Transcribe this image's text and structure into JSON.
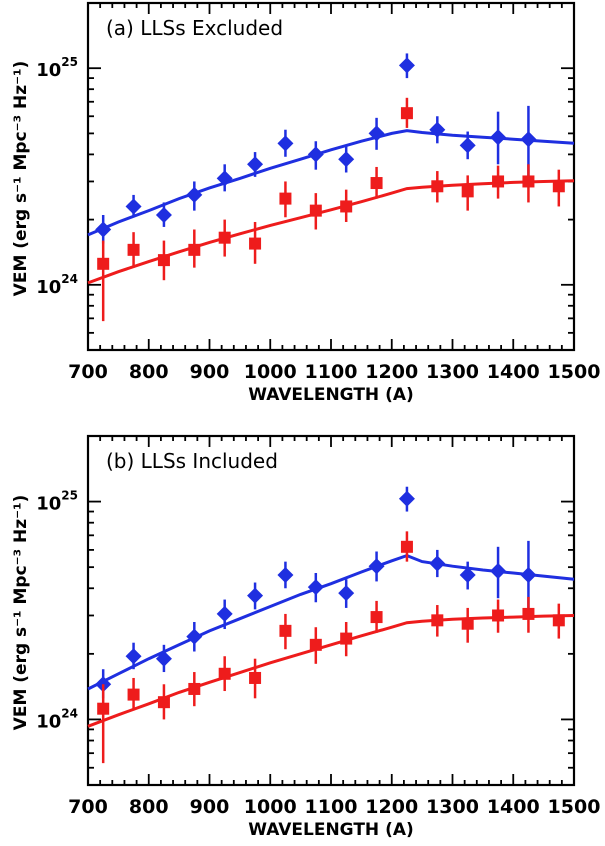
{
  "chart_data": [
    {
      "type": "scatter",
      "id": "a",
      "title": "(a) LLSs Excluded",
      "xlabel": "WAVELENGTH (A)",
      "ylabel": "VEM (erg s⁻¹ Mpc⁻³ Hz⁻¹)",
      "xlim": [
        700,
        1500
      ],
      "ylim": [
        5e+23,
        2e+25
      ],
      "yscale": "log",
      "xticks": [
        "700",
        "800",
        "900",
        "1000",
        "1100",
        "1200",
        "1300",
        "1400",
        "1500"
      ],
      "yticks": [
        {
          "base": "10",
          "exp": "24",
          "value": 1e+24
        },
        {
          "base": "10",
          "exp": "25",
          "value": 1e+25
        }
      ],
      "series": [
        {
          "name": "blue-diamonds",
          "color": "#1f2fe0",
          "marker": "diamond",
          "x": [
            725,
            775,
            825,
            875,
            925,
            975,
            1025,
            1075,
            1125,
            1175,
            1225,
            1275,
            1325,
            1375,
            1425
          ],
          "y": [
            1.8e+24,
            2.3e+24,
            2.1e+24,
            2.6e+24,
            3.1e+24,
            3.6e+24,
            4.5e+24,
            4e+24,
            3.8e+24,
            5e+24,
            1.03e+25,
            5.2e+24,
            4.4e+24,
            4.8e+24,
            4.7e+24
          ],
          "ylo": [
            1.55e+24,
            2.05e+24,
            1.85e+24,
            2.2e+24,
            2.7e+24,
            3.15e+24,
            3.9e+24,
            3.4e+24,
            3.3e+24,
            4.2e+24,
            9e+24,
            4.5e+24,
            3.8e+24,
            3.6e+24,
            3.1e+24
          ],
          "yhi": [
            2.1e+24,
            2.6e+24,
            2.4e+24,
            3e+24,
            3.6e+24,
            4.1e+24,
            5.2e+24,
            4.6e+24,
            4.4e+24,
            5.9e+24,
            1.17e+25,
            6e+24,
            5.1e+24,
            6.3e+24,
            6.7e+24
          ]
        },
        {
          "name": "red-squares",
          "color": "#ee1c1c",
          "marker": "square",
          "x": [
            725,
            775,
            825,
            875,
            925,
            975,
            1025,
            1075,
            1125,
            1175,
            1225,
            1275,
            1325,
            1375,
            1425,
            1475
          ],
          "y": [
            1.25e+24,
            1.45e+24,
            1.3e+24,
            1.45e+24,
            1.65e+24,
            1.55e+24,
            2.5e+24,
            2.2e+24,
            2.3e+24,
            2.95e+24,
            6.2e+24,
            2.85e+24,
            2.7e+24,
            3e+24,
            3e+24,
            2.85e+24
          ],
          "ylo": [
            6.8e+23,
            1.2e+24,
            1.05e+24,
            1.2e+24,
            1.35e+24,
            1.25e+24,
            2.05e+24,
            1.8e+24,
            1.95e+24,
            2.5e+24,
            5.3e+24,
            2.4e+24,
            2.2e+24,
            2.5e+24,
            2.4e+24,
            2.3e+24
          ],
          "yhi": [
            1.6e+24,
            1.75e+24,
            1.6e+24,
            1.8e+24,
            2e+24,
            1.95e+24,
            3e+24,
            2.65e+24,
            2.75e+24,
            3.5e+24,
            7.3e+24,
            3.35e+24,
            3.2e+24,
            3.55e+24,
            3.6e+24,
            3.4e+24
          ]
        }
      ],
      "fits": [
        {
          "name": "blue-fit",
          "color": "#1f2fe0",
          "x": [
            700,
            750,
            800,
            850,
            900,
            950,
            1000,
            1050,
            1100,
            1150,
            1200,
            1225,
            1250,
            1300,
            1350,
            1400,
            1450,
            1500
          ],
          "y": [
            1.7e+24,
            1.95e+24,
            2.2e+24,
            2.5e+24,
            2.8e+24,
            3.1e+24,
            3.45e+24,
            3.8e+24,
            4.2e+24,
            4.6e+24,
            5e+24,
            5.15e+24,
            5.05e+24,
            4.9e+24,
            4.8e+24,
            4.7e+24,
            4.6e+24,
            4.5e+24
          ]
        },
        {
          "name": "red-fit",
          "color": "#ee1c1c",
          "x": [
            700,
            750,
            800,
            850,
            900,
            950,
            1000,
            1050,
            1100,
            1150,
            1200,
            1225,
            1250,
            1300,
            1350,
            1400,
            1450,
            1500
          ],
          "y": [
            1.02e+24,
            1.15e+24,
            1.28e+24,
            1.42e+24,
            1.57e+24,
            1.72e+24,
            1.88e+24,
            2.04e+24,
            2.22e+24,
            2.42e+24,
            2.65e+24,
            2.78e+24,
            2.82e+24,
            2.88e+24,
            2.93e+24,
            2.97e+24,
            3e+24,
            3.02e+24
          ]
        }
      ]
    },
    {
      "type": "scatter",
      "id": "b",
      "title": "(b) LLSs Included",
      "xlabel": "WAVELENGTH (A)",
      "ylabel": "VEM (erg s⁻¹ Mpc⁻³ Hz⁻¹)",
      "xlim": [
        700,
        1500
      ],
      "ylim": [
        5e+23,
        2e+25
      ],
      "yscale": "log",
      "xticks": [
        "700",
        "800",
        "900",
        "1000",
        "1100",
        "1200",
        "1300",
        "1400",
        "1500"
      ],
      "yticks": [
        {
          "base": "10",
          "exp": "24",
          "value": 1e+24
        },
        {
          "base": "10",
          "exp": "25",
          "value": 1e+25
        }
      ],
      "series": [
        {
          "name": "blue-diamonds",
          "color": "#1f2fe0",
          "marker": "diamond",
          "x": [
            725,
            775,
            825,
            875,
            925,
            975,
            1025,
            1075,
            1125,
            1175,
            1225,
            1275,
            1325,
            1375,
            1425
          ],
          "y": [
            1.45e+24,
            1.95e+24,
            1.9e+24,
            2.4e+24,
            3.05e+24,
            3.7e+24,
            4.6e+24,
            4.05e+24,
            3.8e+24,
            5.05e+24,
            1.03e+25,
            5.2e+24,
            4.6e+24,
            4.8e+24,
            4.6e+24
          ],
          "ylo": [
            1.25e+24,
            1.7e+24,
            1.65e+24,
            2.05e+24,
            2.6e+24,
            3.2e+24,
            4e+24,
            3.45e+24,
            3.25e+24,
            4.3e+24,
            9e+24,
            4.5e+24,
            3.95e+24,
            3.6e+24,
            3.1e+24
          ],
          "yhi": [
            1.7e+24,
            2.25e+24,
            2.2e+24,
            2.8e+24,
            3.55e+24,
            4.25e+24,
            5.3e+24,
            4.7e+24,
            4.4e+24,
            5.9e+24,
            1.17e+25,
            6e+24,
            5.3e+24,
            6.2e+24,
            6.6e+24
          ]
        },
        {
          "name": "red-squares",
          "color": "#ee1c1c",
          "marker": "square",
          "x": [
            725,
            775,
            825,
            875,
            925,
            975,
            1025,
            1075,
            1125,
            1175,
            1225,
            1275,
            1325,
            1375,
            1425,
            1475
          ],
          "y": [
            1.12e+24,
            1.3e+24,
            1.2e+24,
            1.38e+24,
            1.62e+24,
            1.55e+24,
            2.55e+24,
            2.2e+24,
            2.35e+24,
            2.95e+24,
            6.2e+24,
            2.85e+24,
            2.75e+24,
            3e+24,
            3.05e+24,
            2.85e+24
          ],
          "ylo": [
            6.3e+23,
            1.1e+24,
            1e+24,
            1.15e+24,
            1.35e+24,
            1.25e+24,
            2.1e+24,
            1.8e+24,
            1.95e+24,
            2.5e+24,
            5.3e+24,
            2.4e+24,
            2.25e+24,
            2.5e+24,
            2.5e+24,
            2.35e+24
          ],
          "yhi": [
            1.45e+24,
            1.55e+24,
            1.45e+24,
            1.65e+24,
            1.95e+24,
            1.9e+24,
            3.05e+24,
            2.65e+24,
            2.8e+24,
            3.5e+24,
            7.3e+24,
            3.35e+24,
            3.25e+24,
            3.55e+24,
            3.65e+24,
            3.4e+24
          ]
        }
      ],
      "fits": [
        {
          "name": "blue-fit",
          "color": "#1f2fe0",
          "x": [
            700,
            750,
            800,
            850,
            900,
            950,
            1000,
            1050,
            1100,
            1150,
            1200,
            1225,
            1250,
            1300,
            1350,
            1400,
            1450,
            1500
          ],
          "y": [
            1.38e+24,
            1.62e+24,
            1.9e+24,
            2.2e+24,
            2.55e+24,
            2.9e+24,
            3.3e+24,
            3.75e+24,
            4.2e+24,
            4.75e+24,
            5.35e+24,
            5.65e+24,
            5.3e+24,
            5.05e+24,
            4.85e+24,
            4.7e+24,
            4.55e+24,
            4.4e+24
          ]
        },
        {
          "name": "red-fit",
          "color": "#ee1c1c",
          "x": [
            700,
            750,
            800,
            850,
            900,
            950,
            1000,
            1050,
            1100,
            1150,
            1200,
            1225,
            1250,
            1300,
            1350,
            1400,
            1450,
            1500
          ],
          "y": [
            9.3e+23,
            1.05e+24,
            1.18e+24,
            1.33e+24,
            1.48e+24,
            1.64e+24,
            1.82e+24,
            2e+24,
            2.2e+24,
            2.42e+24,
            2.65e+24,
            2.78e+24,
            2.82e+24,
            2.88e+24,
            2.92e+24,
            2.95e+24,
            2.98e+24,
            3e+24
          ]
        }
      ]
    }
  ]
}
